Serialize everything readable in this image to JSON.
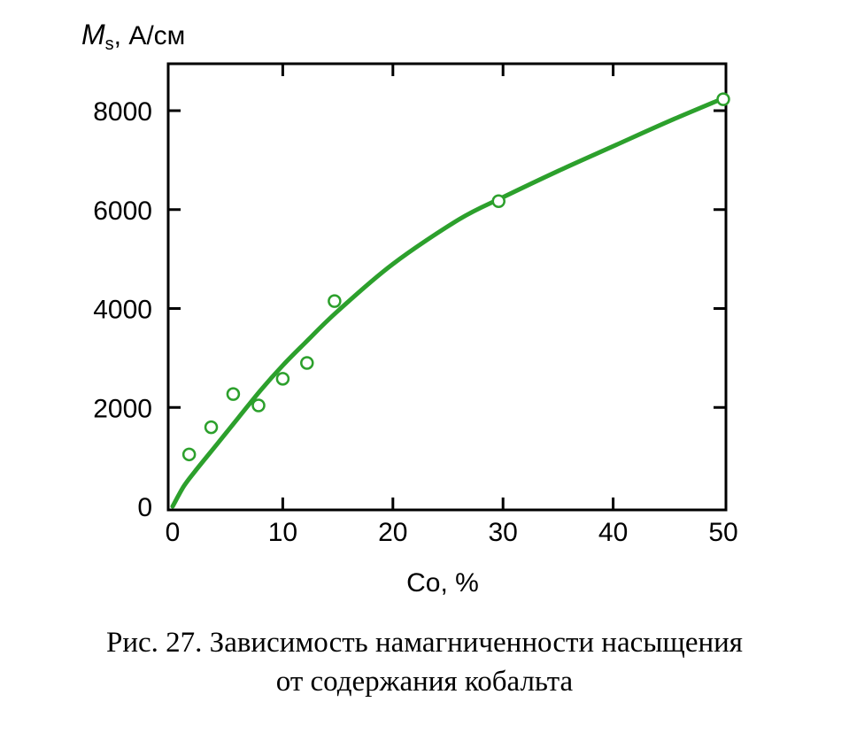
{
  "chart_data": {
    "type": "scatter",
    "x": [
      1.5,
      3.5,
      5.5,
      7.8,
      10.0,
      12.2,
      14.7,
      29.6,
      50.0
    ],
    "y": [
      1050,
      1600,
      2270,
      2040,
      2580,
      2900,
      4150,
      6170,
      8230
    ],
    "fit_curve": {
      "x": [
        0,
        1,
        2,
        4,
        6,
        8,
        10,
        12,
        15,
        20,
        26,
        30,
        35,
        40,
        45,
        50
      ],
      "y": [
        0,
        400,
        700,
        1250,
        1800,
        2350,
        2850,
        3300,
        3950,
        4900,
        5800,
        6250,
        6780,
        7280,
        7780,
        8250
      ]
    },
    "xlabel": "Co, %",
    "ylabel_symbol": "M",
    "ylabel_subscript": "s",
    "ylabel_unit": ", А/см",
    "xlim": [
      0,
      50
    ],
    "ylim": [
      0,
      8000
    ],
    "xticks": [
      "0",
      "10",
      "20",
      "30",
      "40",
      "50"
    ],
    "yticks": [
      "0",
      "2000",
      "4000",
      "6000",
      "8000"
    ],
    "grid": false,
    "color": "#2ca02c"
  },
  "caption": {
    "line1": "Рис. 27. Зависимость намагниченности насыщения",
    "line2": "от содержания кобальта"
  }
}
